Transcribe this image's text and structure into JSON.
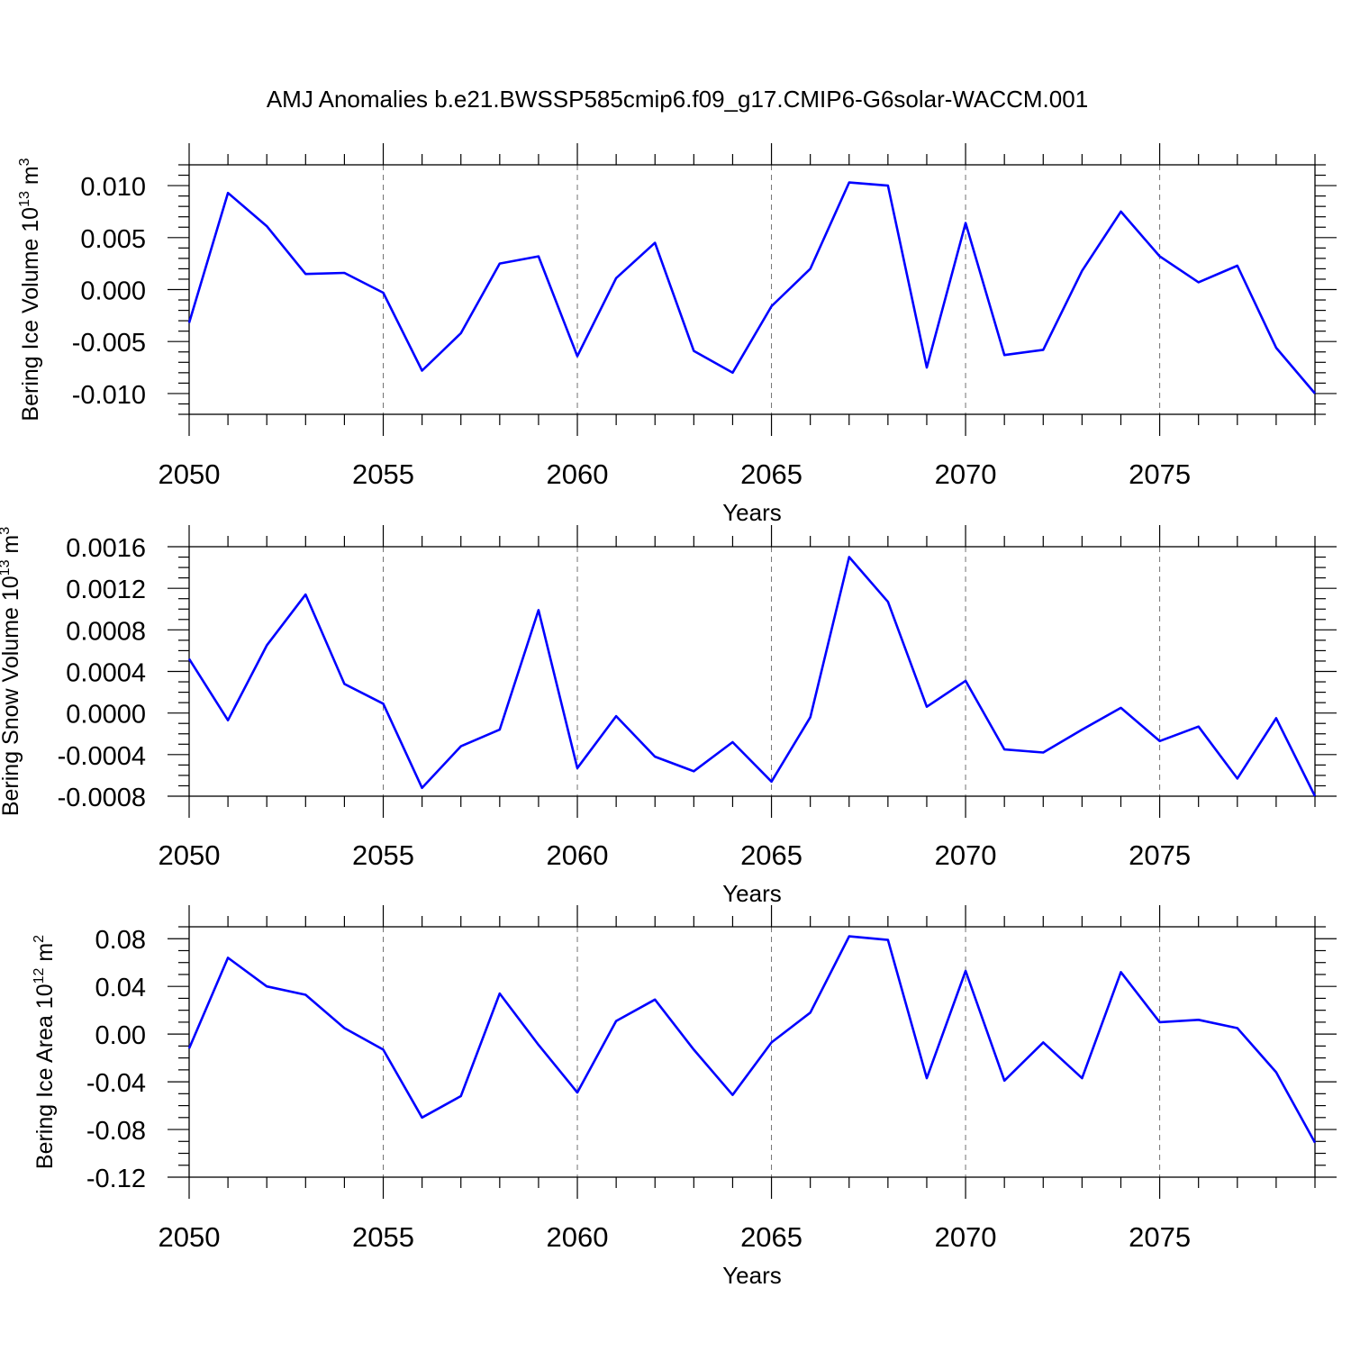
{
  "title": "AMJ Anomalies b.e21.BWSSP585cmip6.f09_g17.CMIP6-G6solar-WACCM.001",
  "series_color": "#0000ff",
  "chart_data": [
    {
      "type": "line",
      "ylabel": "Bering Ice Volume 10",
      "ylabel_exp": "13",
      "ylabel_unit": " m",
      "ylabel_unit_exp": "3",
      "xlabel": "Years",
      "xlim": [
        2050,
        2079
      ],
      "ylim": [
        -0.012,
        0.012
      ],
      "yticks": [
        -0.01,
        -0.005,
        0.0,
        0.005,
        0.01
      ],
      "ytick_labels": [
        "-0.010",
        "-0.005",
        "0.000",
        "0.005",
        "0.010"
      ],
      "yminor_step": 0.001,
      "xticks": [
        2050,
        2055,
        2060,
        2065,
        2070,
        2075
      ],
      "xtick_labels": [
        "2050",
        "2055",
        "2060",
        "2065",
        "2070",
        "2075"
      ],
      "x": [
        2050,
        2051,
        2052,
        2053,
        2054,
        2055,
        2056,
        2057,
        2058,
        2059,
        2060,
        2061,
        2062,
        2063,
        2064,
        2065,
        2066,
        2067,
        2068,
        2069,
        2070,
        2071,
        2072,
        2073,
        2074,
        2075,
        2076,
        2077,
        2078,
        2079
      ],
      "y": [
        -0.0032,
        0.0093,
        0.0061,
        0.0015,
        0.0016,
        -0.0003,
        -0.0078,
        -0.0042,
        0.0025,
        0.0032,
        -0.0064,
        0.0011,
        0.0045,
        -0.0059,
        -0.008,
        -0.0016,
        0.002,
        0.0103,
        0.01,
        -0.0075,
        0.0064,
        -0.0063,
        -0.0058,
        0.0018,
        0.0075,
        0.0032,
        0.0007,
        0.0023,
        -0.0056,
        -0.01
      ]
    },
    {
      "type": "line",
      "ylabel": "Bering Snow Volume 10",
      "ylabel_exp": "13",
      "ylabel_unit": " m",
      "ylabel_unit_exp": "3",
      "xlabel": "Years",
      "xlim": [
        2050,
        2079
      ],
      "ylim": [
        -0.0008,
        0.0016
      ],
      "yticks": [
        -0.0008,
        -0.0004,
        0.0,
        0.0004,
        0.0008,
        0.0012,
        0.0016
      ],
      "ytick_labels": [
        "-0.0008",
        "-0.0004",
        "0.0000",
        "0.0004",
        "0.0008",
        "0.0012",
        "0.0016"
      ],
      "yminor_step": 0.0001,
      "xticks": [
        2050,
        2055,
        2060,
        2065,
        2070,
        2075
      ],
      "xtick_labels": [
        "2050",
        "2055",
        "2060",
        "2065",
        "2070",
        "2075"
      ],
      "x": [
        2050,
        2051,
        2052,
        2053,
        2054,
        2055,
        2056,
        2057,
        2058,
        2059,
        2060,
        2061,
        2062,
        2063,
        2064,
        2065,
        2066,
        2067,
        2068,
        2069,
        2070,
        2071,
        2072,
        2073,
        2074,
        2075,
        2076,
        2077,
        2078,
        2079
      ],
      "y": [
        0.00052,
        -7e-05,
        0.00065,
        0.00114,
        0.00028,
        9e-05,
        -0.00072,
        -0.00032,
        -0.00016,
        0.00099,
        -0.00053,
        -3e-05,
        -0.00042,
        -0.00056,
        -0.00028,
        -0.00066,
        -4e-05,
        0.0015,
        0.00107,
        6e-05,
        0.00031,
        -0.00035,
        -0.00038,
        -0.00016,
        5e-05,
        -0.00027,
        -0.00013,
        -0.00063,
        -5e-05,
        -0.0008
      ]
    },
    {
      "type": "line",
      "ylabel": "Bering Ice Area 10",
      "ylabel_exp": "12",
      "ylabel_unit": " m",
      "ylabel_unit_exp": "2",
      "xlabel": "Years",
      "xlim": [
        2050,
        2079
      ],
      "ylim": [
        -0.12,
        0.09
      ],
      "yticks": [
        -0.12,
        -0.08,
        -0.04,
        0.0,
        0.04,
        0.08
      ],
      "ytick_labels": [
        "-0.12",
        "-0.08",
        "-0.04",
        "0.00",
        "0.04",
        "0.08"
      ],
      "yminor_step": 0.01,
      "xticks": [
        2050,
        2055,
        2060,
        2065,
        2070,
        2075
      ],
      "xtick_labels": [
        "2050",
        "2055",
        "2060",
        "2065",
        "2070",
        "2075"
      ],
      "x": [
        2050,
        2051,
        2052,
        2053,
        2054,
        2055,
        2056,
        2057,
        2058,
        2059,
        2060,
        2061,
        2062,
        2063,
        2064,
        2065,
        2066,
        2067,
        2068,
        2069,
        2070,
        2071,
        2072,
        2073,
        2074,
        2075,
        2076,
        2077,
        2078,
        2079
      ],
      "y": [
        -0.012,
        0.064,
        0.04,
        0.033,
        0.005,
        -0.013,
        -0.07,
        -0.052,
        0.034,
        -0.009,
        -0.049,
        0.011,
        0.029,
        -0.013,
        -0.051,
        -0.007,
        0.018,
        0.082,
        0.079,
        -0.037,
        0.053,
        -0.039,
        -0.007,
        -0.037,
        0.052,
        0.01,
        0.012,
        0.005,
        -0.032,
        -0.091
      ]
    }
  ]
}
